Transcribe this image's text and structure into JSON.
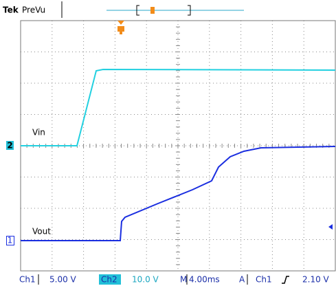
{
  "header": {
    "brand": "Tek",
    "mode": "PreVu"
  },
  "traces": [
    {
      "label": "Vin",
      "channel": "2"
    },
    {
      "label": "Vout",
      "channel": "1"
    }
  ],
  "status": {
    "ch1": "Ch1",
    "ch1_scale": "5.00 V",
    "ch2": "Ch2",
    "ch2_scale": "10.0 V",
    "timebase_prefix": "M",
    "timebase": "4.00ms",
    "trigger_mode": "A",
    "trigger_source": "Ch1",
    "trigger_level": "2.10 V"
  }
}
